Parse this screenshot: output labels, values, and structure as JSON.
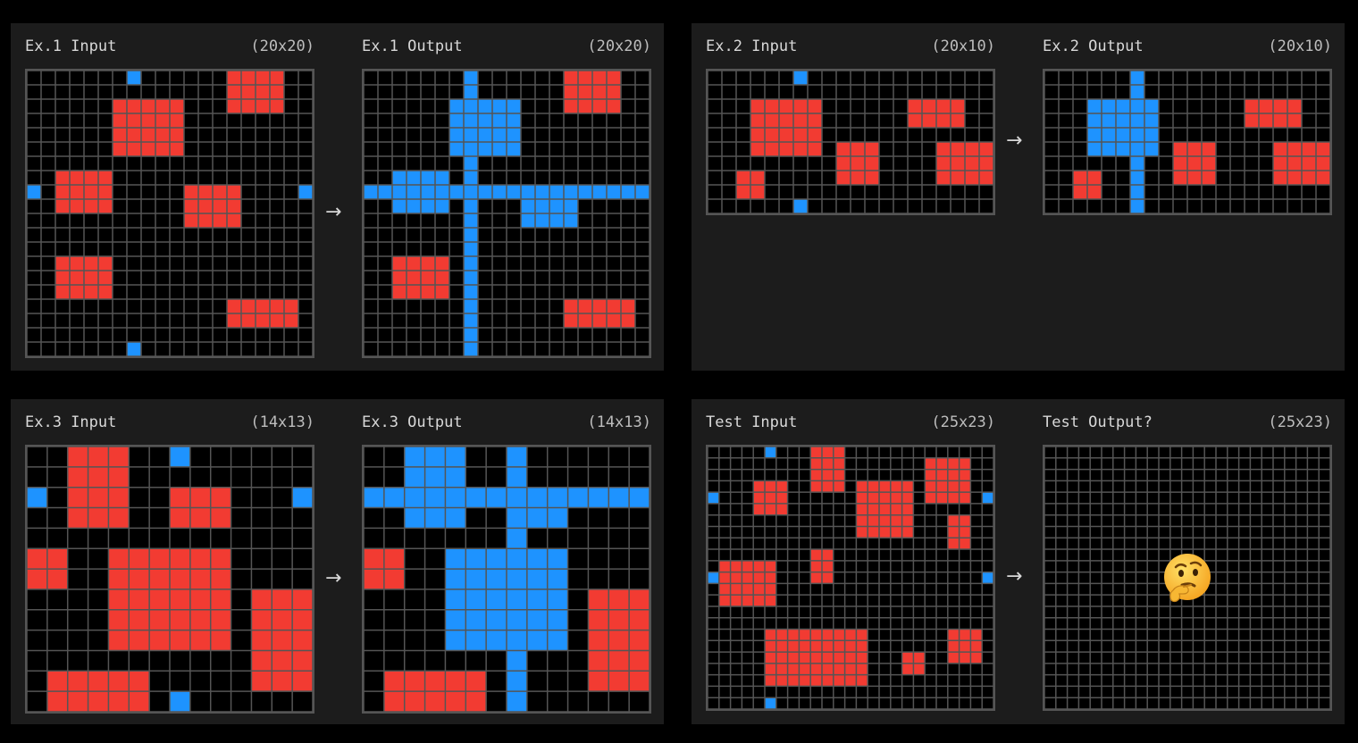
{
  "colors": {
    "background": "#000000",
    "panel": "#1c1c1c",
    "gridline": "#555555",
    "red": "#f23b32",
    "blue": "#1e93ff",
    "black": "#000000"
  },
  "arrow_glyph": "→",
  "icon": "thinking-face-emoji",
  "panels": [
    {
      "left": {
        "title": "Ex.1 Input",
        "dims": "(20x20)",
        "cols": 20,
        "rows": 20,
        "rects": [
          {
            "c": "red",
            "x": 14,
            "y": 0,
            "w": 4,
            "h": 3
          },
          {
            "c": "red",
            "x": 6,
            "y": 2,
            "w": 5,
            "h": 4
          },
          {
            "c": "red",
            "x": 2,
            "y": 7,
            "w": 4,
            "h": 3
          },
          {
            "c": "red",
            "x": 11,
            "y": 8,
            "w": 4,
            "h": 3
          },
          {
            "c": "red",
            "x": 2,
            "y": 13,
            "w": 4,
            "h": 3
          },
          {
            "c": "red",
            "x": 14,
            "y": 16,
            "w": 5,
            "h": 2
          },
          {
            "c": "blue",
            "x": 7,
            "y": 0,
            "w": 1,
            "h": 1
          },
          {
            "c": "blue",
            "x": 0,
            "y": 8,
            "w": 1,
            "h": 1
          },
          {
            "c": "blue",
            "x": 19,
            "y": 8,
            "w": 1,
            "h": 1
          },
          {
            "c": "blue",
            "x": 7,
            "y": 19,
            "w": 1,
            "h": 1
          }
        ]
      },
      "right": {
        "title": "Ex.1 Output",
        "dims": "(20x20)",
        "cols": 20,
        "rows": 20,
        "rects": [
          {
            "c": "red",
            "x": 14,
            "y": 0,
            "w": 4,
            "h": 3
          },
          {
            "c": "red",
            "x": 2,
            "y": 13,
            "w": 4,
            "h": 3
          },
          {
            "c": "red",
            "x": 14,
            "y": 16,
            "w": 5,
            "h": 2
          },
          {
            "c": "blue",
            "x": 7,
            "y": 0,
            "w": 1,
            "h": 20
          },
          {
            "c": "blue",
            "x": 0,
            "y": 8,
            "w": 20,
            "h": 1
          },
          {
            "c": "blue",
            "x": 6,
            "y": 2,
            "w": 5,
            "h": 4
          },
          {
            "c": "blue",
            "x": 2,
            "y": 7,
            "w": 4,
            "h": 3
          },
          {
            "c": "blue",
            "x": 11,
            "y": 8,
            "w": 4,
            "h": 3
          }
        ]
      }
    },
    {
      "left": {
        "title": "Ex.2 Input",
        "dims": "(20x10)",
        "cols": 20,
        "rows": 10,
        "rects": [
          {
            "c": "red",
            "x": 3,
            "y": 2,
            "w": 5,
            "h": 4
          },
          {
            "c": "red",
            "x": 14,
            "y": 2,
            "w": 4,
            "h": 2
          },
          {
            "c": "red",
            "x": 9,
            "y": 5,
            "w": 3,
            "h": 3
          },
          {
            "c": "red",
            "x": 16,
            "y": 5,
            "w": 4,
            "h": 3
          },
          {
            "c": "red",
            "x": 2,
            "y": 7,
            "w": 2,
            "h": 2
          },
          {
            "c": "blue",
            "x": 6,
            "y": 0,
            "w": 1,
            "h": 1
          },
          {
            "c": "blue",
            "x": 6,
            "y": 9,
            "w": 1,
            "h": 1
          }
        ]
      },
      "right": {
        "title": "Ex.2 Output",
        "dims": "(20x10)",
        "cols": 20,
        "rows": 10,
        "rects": [
          {
            "c": "red",
            "x": 14,
            "y": 2,
            "w": 4,
            "h": 2
          },
          {
            "c": "red",
            "x": 9,
            "y": 5,
            "w": 3,
            "h": 3
          },
          {
            "c": "red",
            "x": 16,
            "y": 5,
            "w": 4,
            "h": 3
          },
          {
            "c": "red",
            "x": 2,
            "y": 7,
            "w": 2,
            "h": 2
          },
          {
            "c": "blue",
            "x": 6,
            "y": 0,
            "w": 1,
            "h": 10
          },
          {
            "c": "blue",
            "x": 3,
            "y": 2,
            "w": 5,
            "h": 4
          }
        ]
      }
    },
    {
      "left": {
        "title": "Ex.3 Input",
        "dims": "(14x13)",
        "cols": 14,
        "rows": 13,
        "rects": [
          {
            "c": "red",
            "x": 2,
            "y": 0,
            "w": 3,
            "h": 4
          },
          {
            "c": "red",
            "x": 7,
            "y": 2,
            "w": 3,
            "h": 2
          },
          {
            "c": "red",
            "x": 0,
            "y": 5,
            "w": 2,
            "h": 2
          },
          {
            "c": "red",
            "x": 4,
            "y": 5,
            "w": 6,
            "h": 5
          },
          {
            "c": "red",
            "x": 11,
            "y": 7,
            "w": 3,
            "h": 5
          },
          {
            "c": "red",
            "x": 1,
            "y": 11,
            "w": 5,
            "h": 2
          },
          {
            "c": "blue",
            "x": 7,
            "y": 0,
            "w": 1,
            "h": 1
          },
          {
            "c": "blue",
            "x": 0,
            "y": 2,
            "w": 1,
            "h": 1
          },
          {
            "c": "blue",
            "x": 13,
            "y": 2,
            "w": 1,
            "h": 1
          },
          {
            "c": "blue",
            "x": 7,
            "y": 12,
            "w": 1,
            "h": 1
          }
        ]
      },
      "right": {
        "title": "Ex.3 Output",
        "dims": "(14x13)",
        "cols": 14,
        "rows": 13,
        "rects": [
          {
            "c": "red",
            "x": 0,
            "y": 5,
            "w": 2,
            "h": 2
          },
          {
            "c": "red",
            "x": 11,
            "y": 7,
            "w": 3,
            "h": 5
          },
          {
            "c": "red",
            "x": 1,
            "y": 11,
            "w": 5,
            "h": 2
          },
          {
            "c": "blue",
            "x": 2,
            "y": 0,
            "w": 3,
            "h": 4
          },
          {
            "c": "blue",
            "x": 7,
            "y": 0,
            "w": 1,
            "h": 13
          },
          {
            "c": "blue",
            "x": 0,
            "y": 2,
            "w": 14,
            "h": 1
          },
          {
            "c": "blue",
            "x": 7,
            "y": 2,
            "w": 3,
            "h": 2
          },
          {
            "c": "blue",
            "x": 4,
            "y": 5,
            "w": 6,
            "h": 5
          }
        ]
      }
    },
    {
      "left": {
        "title": "Test Input",
        "dims": "(25x23)",
        "cols": 25,
        "rows": 23,
        "rects": [
          {
            "c": "red",
            "x": 9,
            "y": 0,
            "w": 3,
            "h": 4
          },
          {
            "c": "red",
            "x": 19,
            "y": 1,
            "w": 4,
            "h": 4
          },
          {
            "c": "red",
            "x": 4,
            "y": 3,
            "w": 3,
            "h": 3
          },
          {
            "c": "red",
            "x": 13,
            "y": 3,
            "w": 5,
            "h": 5
          },
          {
            "c": "red",
            "x": 21,
            "y": 6,
            "w": 2,
            "h": 3
          },
          {
            "c": "red",
            "x": 9,
            "y": 9,
            "w": 2,
            "h": 3
          },
          {
            "c": "red",
            "x": 1,
            "y": 10,
            "w": 5,
            "h": 4
          },
          {
            "c": "red",
            "x": 5,
            "y": 16,
            "w": 9,
            "h": 5
          },
          {
            "c": "red",
            "x": 21,
            "y": 16,
            "w": 3,
            "h": 3
          },
          {
            "c": "red",
            "x": 17,
            "y": 18,
            "w": 2,
            "h": 2
          },
          {
            "c": "blue",
            "x": 5,
            "y": 0,
            "w": 1,
            "h": 1
          },
          {
            "c": "blue",
            "x": 0,
            "y": 4,
            "w": 1,
            "h": 1
          },
          {
            "c": "blue",
            "x": 24,
            "y": 4,
            "w": 1,
            "h": 1
          },
          {
            "c": "blue",
            "x": 0,
            "y": 11,
            "w": 1,
            "h": 1
          },
          {
            "c": "blue",
            "x": 24,
            "y": 11,
            "w": 1,
            "h": 1
          },
          {
            "c": "blue",
            "x": 5,
            "y": 22,
            "w": 1,
            "h": 1
          }
        ]
      },
      "right": {
        "title": "Test Output?",
        "dims": "(25x23)",
        "cols": 25,
        "rows": 23,
        "rects": [],
        "emoji": "🤔"
      }
    }
  ]
}
